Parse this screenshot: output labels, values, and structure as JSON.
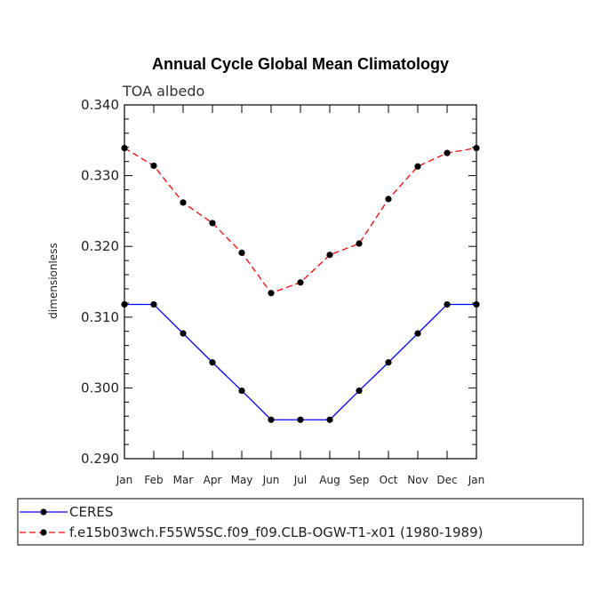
{
  "chart_data": {
    "type": "line",
    "title": "Annual Cycle Global Mean Climatology",
    "subtitle": "TOA albedo",
    "xlabel": "",
    "ylabel": "dimensionless",
    "categories": [
      "Jan",
      "Feb",
      "Mar",
      "Apr",
      "May",
      "Jun",
      "Jul",
      "Aug",
      "Sep",
      "Oct",
      "Nov",
      "Dec",
      "Jan"
    ],
    "ylim": [
      0.29,
      0.34
    ],
    "yticks": [
      "0.290",
      "0.300",
      "0.310",
      "0.320",
      "0.330",
      "0.340"
    ],
    "legend_position": "bottom",
    "series": [
      {
        "name": "CERES",
        "color": "#0000ff",
        "style": "solid",
        "values": [
          0.3118,
          0.3118,
          0.3077,
          0.3036,
          0.2996,
          0.2955,
          0.2955,
          0.2955,
          0.2996,
          0.3036,
          0.3077,
          0.3118,
          0.3118
        ]
      },
      {
        "name": "f.e15b03wch.F55W5SC.f09_f09.CLB-OGW-T1-x01 (1980-1989)",
        "color": "#ff0000",
        "style": "dashed",
        "values": [
          0.3339,
          0.3314,
          0.3262,
          0.3233,
          0.3191,
          0.3134,
          0.3149,
          0.3188,
          0.3204,
          0.3267,
          0.3313,
          0.3332,
          0.3339
        ]
      }
    ]
  }
}
